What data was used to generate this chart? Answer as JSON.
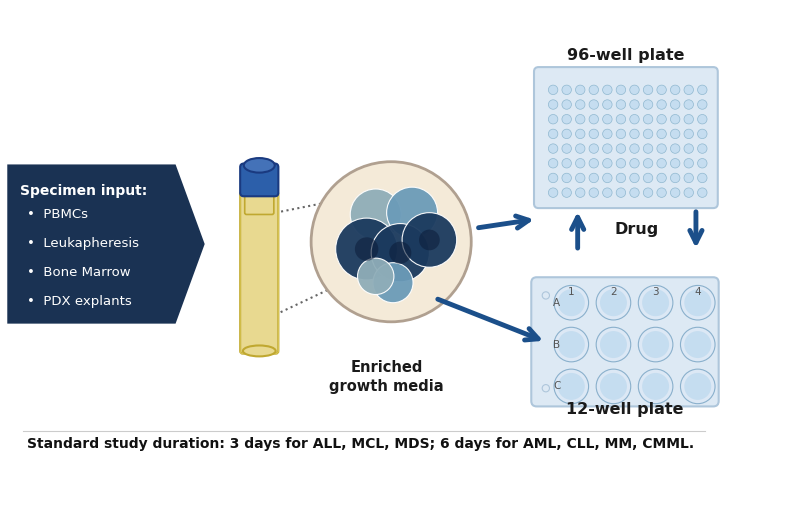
{
  "bg_color": "#ffffff",
  "arrow_color": "#1b4f8a",
  "pentagon_color": "#1a3253",
  "pentagon_text_color": "#ffffff",
  "specimen_title": "Specimen input:",
  "specimen_bullets": [
    "PBMCs",
    "Leukapheresis",
    "Bone Marrow",
    "PDX explants"
  ],
  "plate96_label": "96-well plate",
  "plate12_label": "12-well plate",
  "drug_label": "Drug",
  "enriched_label": "Enriched\ngrowth media",
  "footer_text": "Standard study duration: 3 days for ALL, MCL, MDS; 6 days for AML, CLL, MM, CMML.",
  "well96_fill": "#c5ddf0",
  "well96_bg": "#dde9f4",
  "well12_fill": "#c5ddf0",
  "well12_bg": "#dde9f4",
  "plate_border": "#aec6db",
  "cell_dark": "#1b3a5e",
  "cell_medium": "#2f6bab",
  "cell_teal": "#6b9bb8",
  "cell_gray": "#8fadb8",
  "circle_bg": "#f4ead8",
  "circle_border": "#b0a090",
  "tube_liquid": "#e8d990",
  "tube_glass": "#f0ead0",
  "tube_cap": "#2c5faa",
  "tube_border": "#c0a830"
}
